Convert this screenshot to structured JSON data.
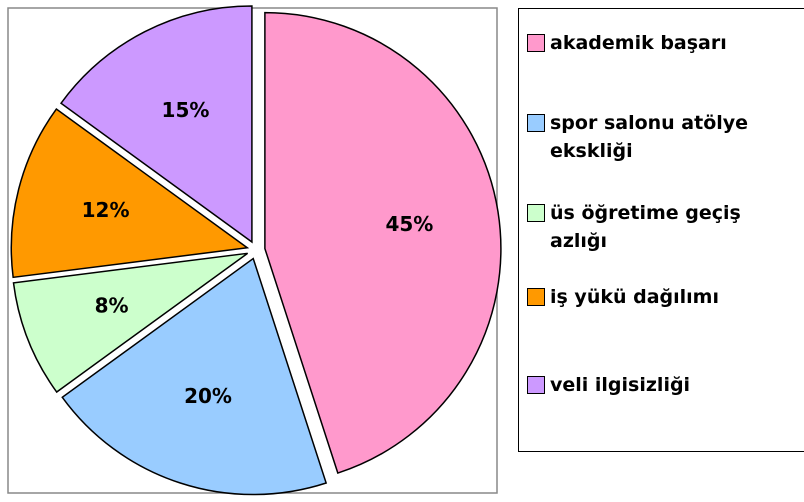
{
  "chart_data": {
    "type": "pie",
    "categories": [
      "akademik başarı",
      "spor salonu atölye ekskliği",
      "üs öğretime geçiş azlığı",
      "iş yükü dağılımı",
      "veli ilgisizliği"
    ],
    "values": [
      45,
      20,
      8,
      12,
      15
    ],
    "value_labels": [
      "45%",
      "20%",
      "8%",
      "12%",
      "15%"
    ],
    "colors": [
      "#ff99cc",
      "#99ccff",
      "#ccffcc",
      "#ff9900",
      "#cc99ff"
    ],
    "legend": "right"
  }
}
